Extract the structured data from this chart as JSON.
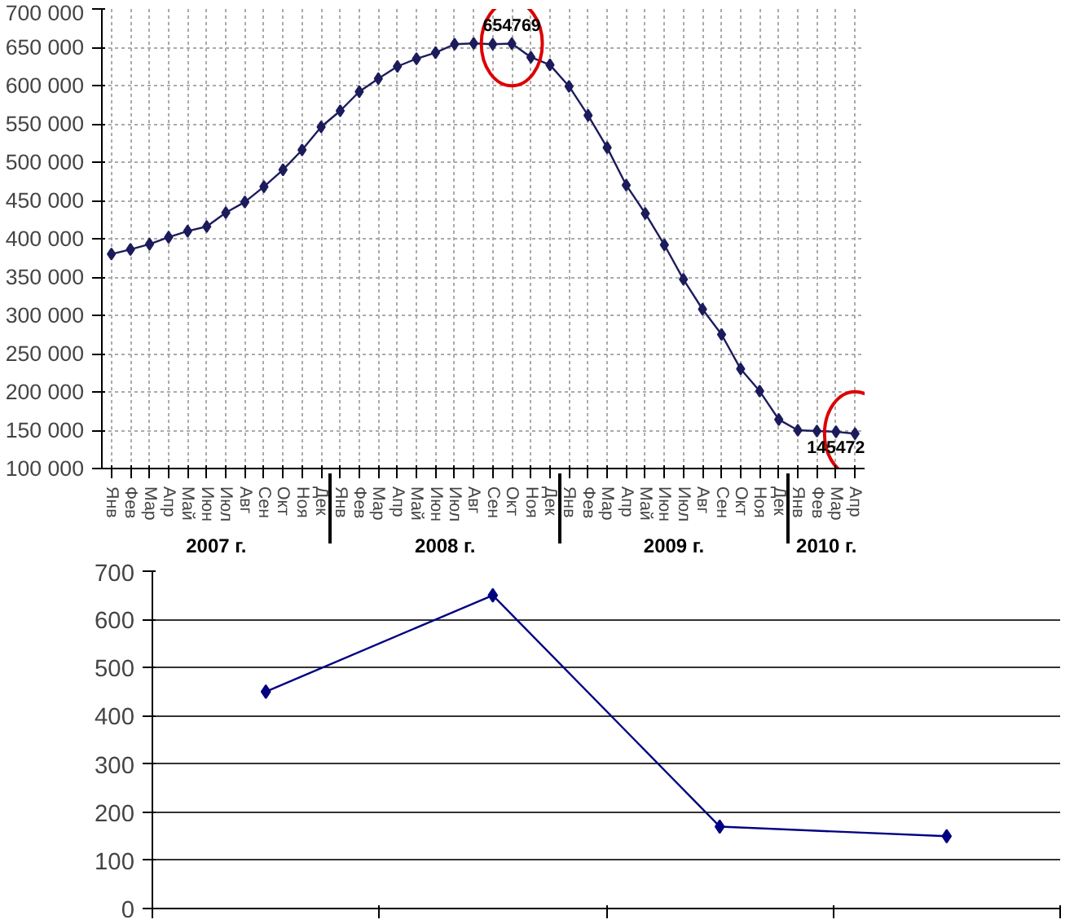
{
  "chart_data": [
    {
      "type": "line",
      "categories": [
        "Янв",
        "Фев",
        "Мар",
        "Апр",
        "Май",
        "Июн",
        "Июл",
        "Авг",
        "Сен",
        "Окт",
        "Ноя",
        "Дек",
        "Янв",
        "Фев",
        "Мар",
        "Апр",
        "Май",
        "Июн",
        "Июл",
        "Авг",
        "Сен",
        "Окт",
        "Ноя",
        "Дек",
        "Янв",
        "Фев",
        "Мар",
        "Апр",
        "Май",
        "Июн",
        "Июл",
        "Авг",
        "Сен",
        "Окт",
        "Ноя",
        "Дек",
        "Янв",
        "Фев",
        "Мар",
        "Апр"
      ],
      "series": [
        {
          "color": "#1c1c5c",
          "values": [
            380000,
            386000,
            393000,
            402000,
            410000,
            416000,
            434000,
            448000,
            468000,
            490000,
            516000,
            546000,
            567000,
            592000,
            609000,
            625000,
            635000,
            643000,
            654000,
            655000,
            654000,
            654769,
            637000,
            627000,
            599000,
            561000,
            519000,
            470000,
            433000,
            392000,
            347000,
            308000,
            275000,
            230000,
            201000,
            164000,
            150000,
            149000,
            148000,
            145472
          ],
          "value_labels": [
            null,
            null,
            null,
            null,
            null,
            null,
            null,
            null,
            null,
            null,
            null,
            null,
            null,
            null,
            null,
            null,
            null,
            null,
            null,
            null,
            null,
            "654769",
            null,
            null,
            null,
            null,
            null,
            null,
            null,
            null,
            null,
            null,
            null,
            null,
            null,
            null,
            null,
            null,
            null,
            "145472"
          ]
        }
      ],
      "ylim": [
        100000,
        700000
      ],
      "yticks": [
        {
          "value": 100000,
          "label": "100 000"
        },
        {
          "value": 150000,
          "label": "150 000"
        },
        {
          "value": 200000,
          "label": "200 000"
        },
        {
          "value": 250000,
          "label": "250 000"
        },
        {
          "value": 300000,
          "label": "300 000"
        },
        {
          "value": 350000,
          "label": "350 000"
        },
        {
          "value": 400000,
          "label": "400 000"
        },
        {
          "value": 450000,
          "label": "450 000"
        },
        {
          "value": 500000,
          "label": "500 000"
        },
        {
          "value": 550000,
          "label": "550 000"
        },
        {
          "value": 600000,
          "label": "600 000"
        },
        {
          "value": 650000,
          "label": "650 000"
        },
        {
          "value": 700000,
          "label": "700 000"
        }
      ],
      "annotations": [
        "2007 г.",
        "2008 г.",
        "2009 г.",
        "2010 г."
      ],
      "grid": true,
      "marker": "diamond",
      "line_style": "solid"
    },
    {
      "type": "line",
      "categories": [
        null,
        null,
        null,
        null
      ],
      "series": [
        {
          "color": "#000080",
          "values": [
            450,
            650,
            170,
            150
          ]
        }
      ],
      "ylim": [
        0,
        700
      ],
      "yticks": [
        0,
        100,
        200,
        300,
        400,
        500,
        600,
        700
      ],
      "grid": "y",
      "marker": "diamond",
      "line_style": "solid",
      "tick_labels": "y"
    }
  ]
}
